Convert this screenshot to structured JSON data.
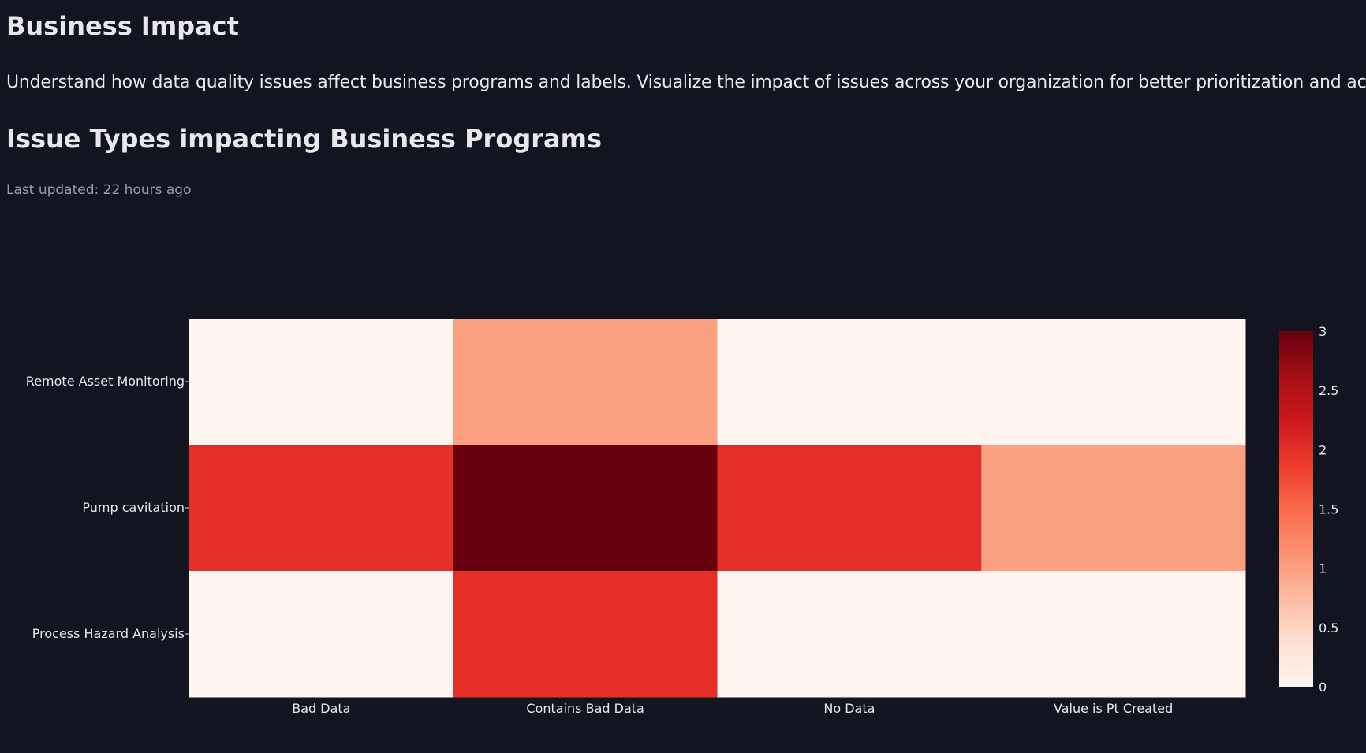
{
  "page": {
    "title": "Business Impact",
    "description": "Understand how data quality issues affect business programs and labels. Visualize the impact of issues across your organization for better prioritization and action.",
    "section_title": "Issue Types impacting Business Programs",
    "last_updated": "Last updated: 22 hours ago"
  },
  "chart_data": {
    "type": "heatmap",
    "x": [
      "Bad Data",
      "Contains Bad Data",
      "No Data",
      "Value is Pt Created"
    ],
    "y": [
      "Remote Asset Monitoring",
      "Pump cavitation",
      "Process Hazard Analysis"
    ],
    "z": [
      [
        0,
        1,
        0,
        0
      ],
      [
        2,
        3,
        2,
        1
      ],
      [
        0,
        2,
        0,
        0
      ]
    ],
    "colorscale": "Reds",
    "zlim": [
      0,
      3
    ],
    "colorbar_ticks": [
      "0",
      "0.5",
      "1",
      "1.5",
      "2",
      "2.5",
      "3"
    ],
    "colorbar_tick_values": [
      0,
      0.5,
      1,
      1.5,
      2,
      2.5,
      3
    ]
  }
}
